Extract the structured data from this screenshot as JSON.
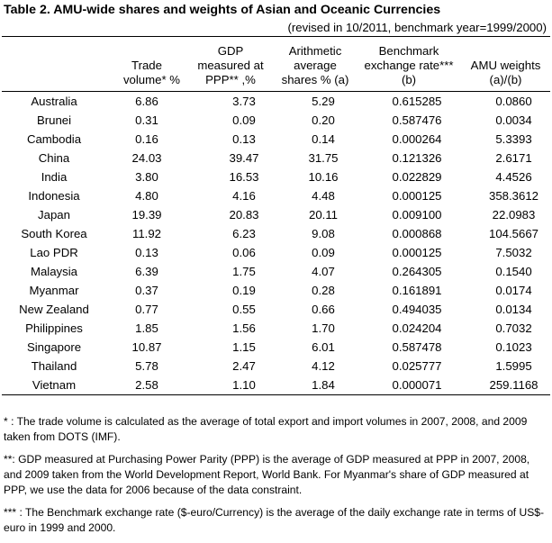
{
  "title": "Table 2. AMU-wide shares and weights of Asian and Oceanic Currencies",
  "subtitle": "(revised in 10/2011, benchmark year=1999/2000)",
  "headers": [
    {
      "lines": [
        "",
        ""
      ]
    },
    {
      "lines": [
        "Trade",
        "volume*   %"
      ]
    },
    {
      "lines": [
        "GDP",
        "measured at",
        "PPP** ,%"
      ]
    },
    {
      "lines": [
        "Arithmetic",
        "average",
        "shares %  (a)"
      ]
    },
    {
      "lines": [
        "Benchmark",
        "exchange rate***",
        "(b)"
      ]
    },
    {
      "lines": [
        "AMU weights",
        "(a)/(b)"
      ]
    }
  ],
  "rows": [
    {
      "country": "Australia",
      "trade": "6.86",
      "gdp": "3.73",
      "avg": "5.29",
      "rate": "0.615285",
      "weight": "0.0860"
    },
    {
      "country": "Brunei",
      "trade": "0.31",
      "gdp": "0.09",
      "avg": "0.20",
      "rate": "0.587476",
      "weight": "0.0034"
    },
    {
      "country": "Cambodia",
      "trade": "0.16",
      "gdp": "0.13",
      "avg": "0.14",
      "rate": "0.000264",
      "weight": "5.3393"
    },
    {
      "country": "China",
      "trade": "24.03",
      "gdp": "39.47",
      "avg": "31.75",
      "rate": "0.121326",
      "weight": "2.6171"
    },
    {
      "country": "India",
      "trade": "3.80",
      "gdp": "16.53",
      "avg": "10.16",
      "rate": "0.022829",
      "weight": "4.4526"
    },
    {
      "country": "Indonesia",
      "trade": "4.80",
      "gdp": "4.16",
      "avg": "4.48",
      "rate": "0.000125",
      "weight": "358.3612"
    },
    {
      "country": "Japan",
      "trade": "19.39",
      "gdp": "20.83",
      "avg": "20.11",
      "rate": "0.009100",
      "weight": "22.0983"
    },
    {
      "country": "South Korea",
      "trade": "11.92",
      "gdp": "6.23",
      "avg": "9.08",
      "rate": "0.000868",
      "weight": "104.5667"
    },
    {
      "country": "Lao PDR",
      "trade": "0.13",
      "gdp": "0.06",
      "avg": "0.09",
      "rate": "0.000125",
      "weight": "7.5032"
    },
    {
      "country": "Malaysia",
      "trade": "6.39",
      "gdp": "1.75",
      "avg": "4.07",
      "rate": "0.264305",
      "weight": "0.1540"
    },
    {
      "country": "Myanmar",
      "trade": "0.37",
      "gdp": "0.19",
      "avg": "0.28",
      "rate": "0.161891",
      "weight": "0.0174"
    },
    {
      "country": "New Zealand",
      "trade": "0.77",
      "gdp": "0.55",
      "avg": "0.66",
      "rate": "0.494035",
      "weight": "0.0134"
    },
    {
      "country": "Philippines",
      "trade": "1.85",
      "gdp": "1.56",
      "avg": "1.70",
      "rate": "0.024204",
      "weight": "0.7032"
    },
    {
      "country": "Singapore",
      "trade": "10.87",
      "gdp": "1.15",
      "avg": "6.01",
      "rate": "0.587478",
      "weight": "0.1023"
    },
    {
      "country": "Thailand",
      "trade": "5.78",
      "gdp": "2.47",
      "avg": "4.12",
      "rate": "0.025777",
      "weight": "1.5995"
    },
    {
      "country": "Vietnam",
      "trade": "2.58",
      "gdp": "1.10",
      "avg": "1.84",
      "rate": "0.000071",
      "weight": "259.1168"
    }
  ],
  "notes": [
    "* : The trade volume is calculated as the average of total export and import volumes in 2007, 2008, and 2009 taken from DOTS (IMF).",
    "**: GDP measured at Purchasing Power Parity (PPP) is the average of GDP measured at PPP in 2007, 2008, and 2009 taken from the World Development Report, World Bank. For Myanmar's share of GDP measured at PPP, we use the data for 2006 because of the data constraint.",
    "*** : The Benchmark exchange rate ($-euro/Currency) is the average of the daily exchange rate in terms of US$-euro in 1999 and 2000."
  ]
}
